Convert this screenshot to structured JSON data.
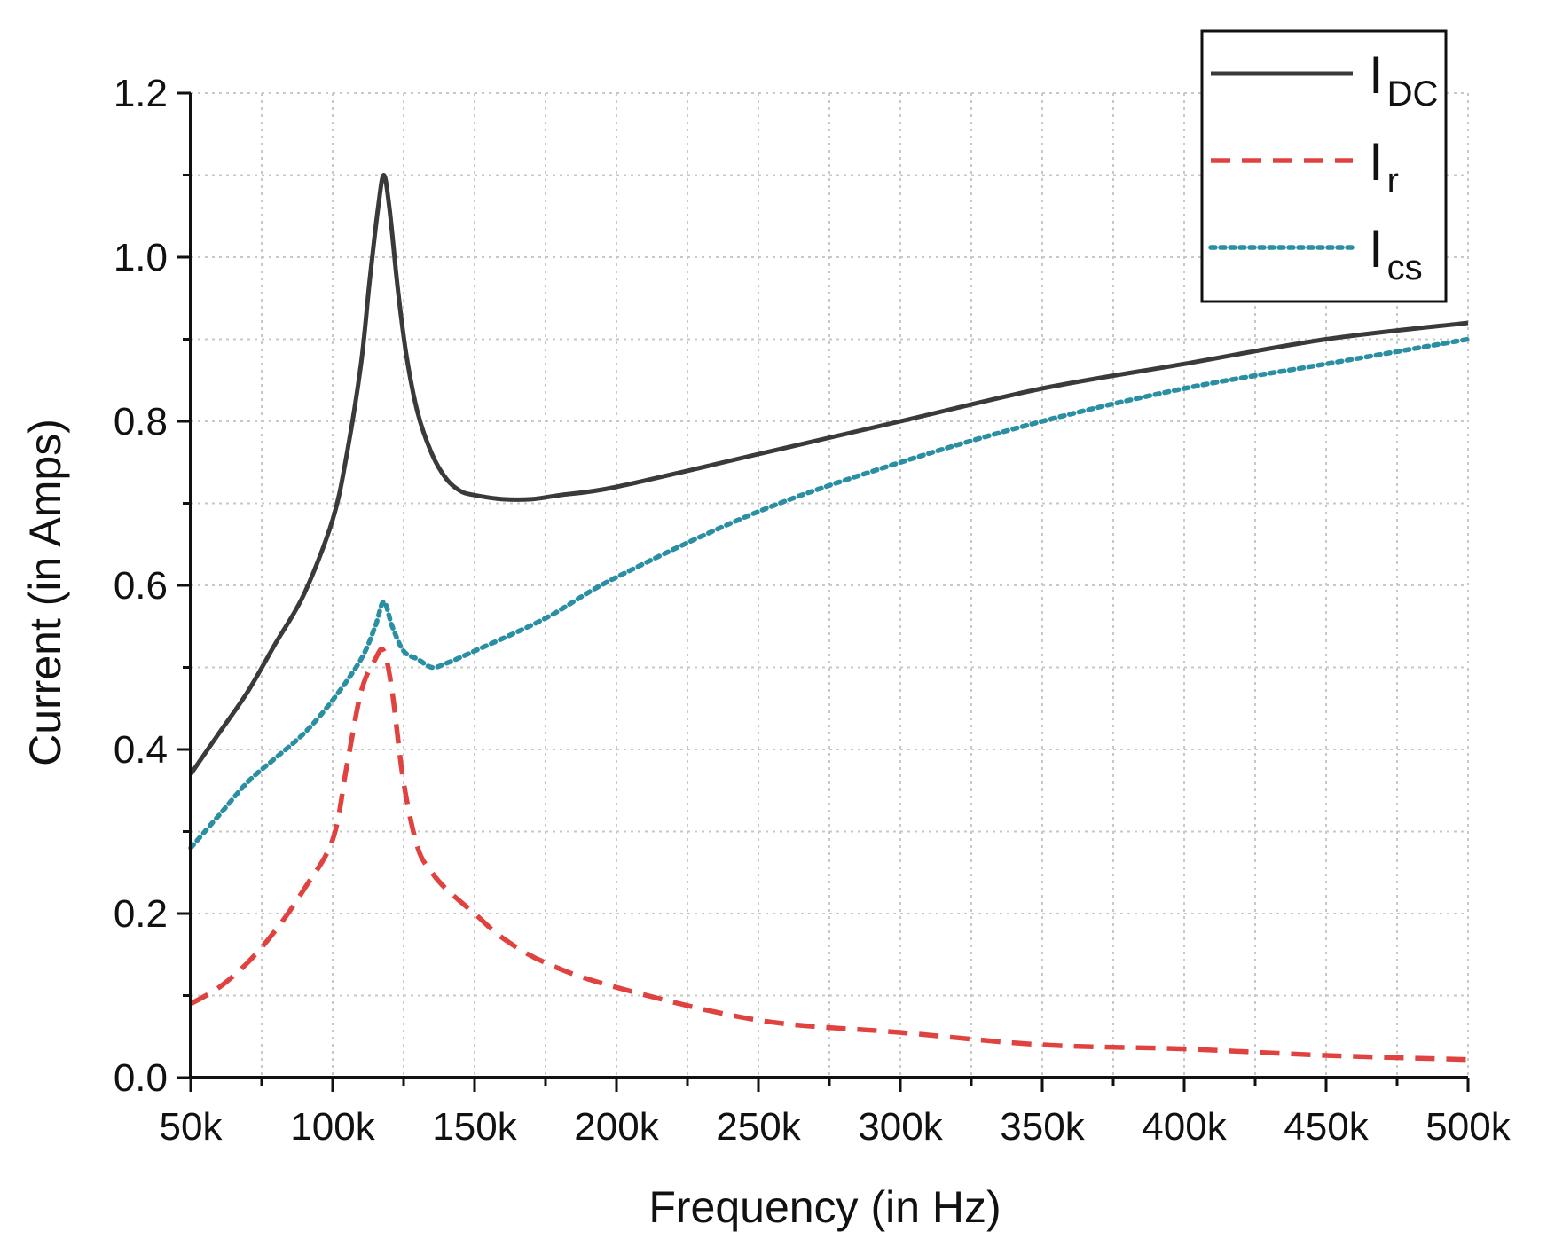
{
  "chart_data": {
    "type": "line",
    "title": "",
    "xlabel": "Frequency (in Hz)",
    "ylabel": "Current (in Amps)",
    "xlim": [
      50000,
      500000
    ],
    "ylim": [
      0,
      1.2
    ],
    "grid": true,
    "legend_position": "top-right",
    "x_ticks": [
      {
        "value": 50000,
        "label": "50k"
      },
      {
        "value": 100000,
        "label": "100k"
      },
      {
        "value": 150000,
        "label": "150k"
      },
      {
        "value": 200000,
        "label": "200k"
      },
      {
        "value": 250000,
        "label": "250k"
      },
      {
        "value": 300000,
        "label": "300k"
      },
      {
        "value": 350000,
        "label": "350k"
      },
      {
        "value": 400000,
        "label": "400k"
      },
      {
        "value": 450000,
        "label": "450k"
      },
      {
        "value": 500000,
        "label": "500k"
      }
    ],
    "y_ticks": [
      {
        "value": 0.0,
        "label": "0.0"
      },
      {
        "value": 0.2,
        "label": "0.2"
      },
      {
        "value": 0.4,
        "label": "0.4"
      },
      {
        "value": 0.6,
        "label": "0.6"
      },
      {
        "value": 0.8,
        "label": "0.8"
      },
      {
        "value": 1.0,
        "label": "1.0"
      },
      {
        "value": 1.2,
        "label": "1.2"
      }
    ],
    "series": [
      {
        "name": "IDC",
        "label_main": "I",
        "label_sub": "DC",
        "color": "#3a3a3a",
        "style": "solid",
        "x": [
          50000,
          60000,
          70000,
          80000,
          90000,
          100000,
          105000,
          110000,
          113000,
          116000,
          118000,
          120000,
          123000,
          126000,
          130000,
          135000,
          140000,
          145000,
          150000,
          160000,
          170000,
          180000,
          200000,
          250000,
          300000,
          350000,
          400000,
          450000,
          500000
        ],
        "values": [
          0.37,
          0.42,
          0.47,
          0.53,
          0.59,
          0.68,
          0.76,
          0.87,
          0.97,
          1.06,
          1.1,
          1.06,
          0.96,
          0.88,
          0.81,
          0.76,
          0.73,
          0.715,
          0.71,
          0.705,
          0.705,
          0.71,
          0.72,
          0.76,
          0.8,
          0.84,
          0.87,
          0.9,
          0.92
        ]
      },
      {
        "name": "Ir",
        "label_main": "I",
        "label_sub": "r",
        "color": "#e0433f",
        "style": "dashed",
        "x": [
          50000,
          60000,
          70000,
          80000,
          90000,
          100000,
          105000,
          110000,
          115000,
          118000,
          121000,
          125000,
          130000,
          135000,
          140000,
          150000,
          160000,
          175000,
          200000,
          250000,
          300000,
          350000,
          400000,
          450000,
          500000
        ],
        "values": [
          0.09,
          0.11,
          0.14,
          0.18,
          0.23,
          0.29,
          0.38,
          0.47,
          0.51,
          0.52,
          0.47,
          0.36,
          0.28,
          0.25,
          0.23,
          0.2,
          0.17,
          0.14,
          0.11,
          0.07,
          0.055,
          0.04,
          0.035,
          0.027,
          0.022
        ]
      },
      {
        "name": "Ics",
        "label_main": "I",
        "label_sub": "cs",
        "color": "#2b8fa3",
        "style": "dotted",
        "x": [
          50000,
          60000,
          70000,
          80000,
          90000,
          100000,
          110000,
          115000,
          118000,
          121000,
          125000,
          130000,
          135000,
          140000,
          150000,
          175000,
          200000,
          250000,
          300000,
          350000,
          400000,
          450000,
          500000
        ],
        "values": [
          0.28,
          0.32,
          0.36,
          0.39,
          0.42,
          0.46,
          0.51,
          0.55,
          0.58,
          0.55,
          0.52,
          0.51,
          0.5,
          0.505,
          0.52,
          0.56,
          0.61,
          0.69,
          0.75,
          0.8,
          0.84,
          0.87,
          0.9
        ]
      }
    ]
  }
}
